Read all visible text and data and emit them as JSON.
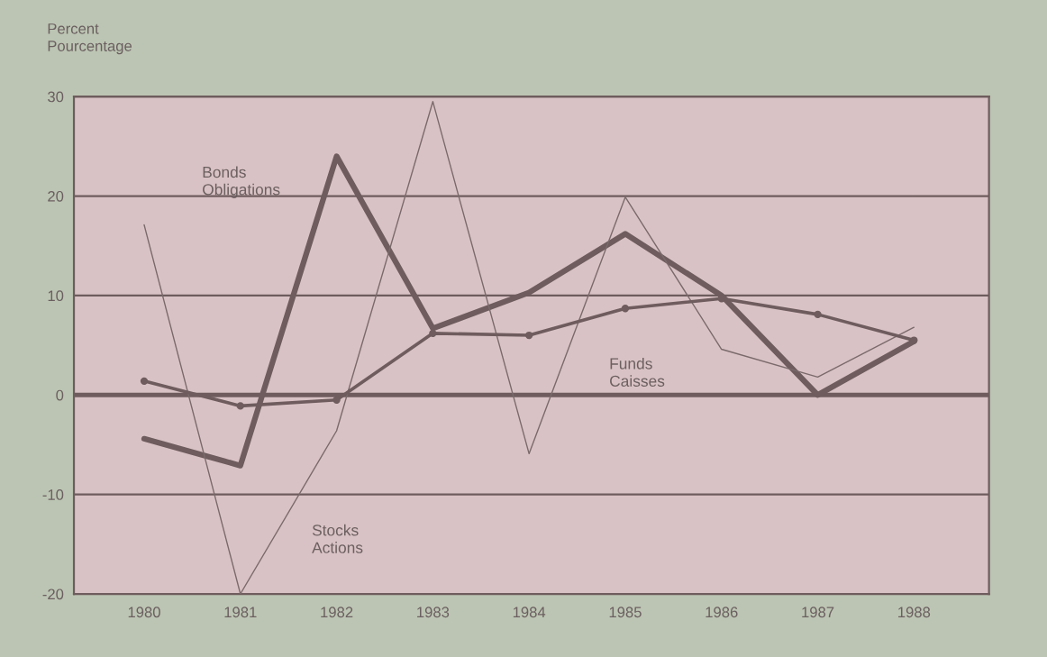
{
  "chart_data": {
    "type": "line",
    "ylabel": "Percent\nPourcentage",
    "x": [
      1980,
      1981,
      1982,
      1983,
      1984,
      1985,
      1986,
      1987,
      1988
    ],
    "series": [
      {
        "name": "Bonds\nObligations",
        "color": "#6e5c5e",
        "values": [
          -4.4,
          -7.1,
          24.0,
          6.7,
          10.3,
          16.2,
          10.0,
          0.0,
          5.4
        ]
      },
      {
        "name": "Stocks\nActions",
        "color": "#7a6a6c",
        "values": [
          17.1,
          -20.0,
          -3.6,
          29.5,
          -5.9,
          19.9,
          4.6,
          1.8,
          6.8
        ]
      },
      {
        "name": "Funds\nCaisses",
        "color": "#6e5c5e",
        "marker": "circle",
        "values": [
          1.4,
          -1.1,
          -0.5,
          6.2,
          6.0,
          8.7,
          9.7,
          8.1,
          5.5
        ]
      }
    ],
    "xlim": [
      1979.27,
      1988.78
    ],
    "xticks": [
      1980,
      1981,
      1982,
      1983,
      1984,
      1985,
      1986,
      1987,
      1988
    ],
    "ylim": [
      -20,
      30
    ],
    "yticks": [
      -20,
      -10,
      0,
      10,
      20,
      30
    ],
    "ref_lines": [
      {
        "axis": "y",
        "value": 0,
        "color": "#6e5c5e"
      }
    ],
    "grid": "y",
    "legend": false
  }
}
